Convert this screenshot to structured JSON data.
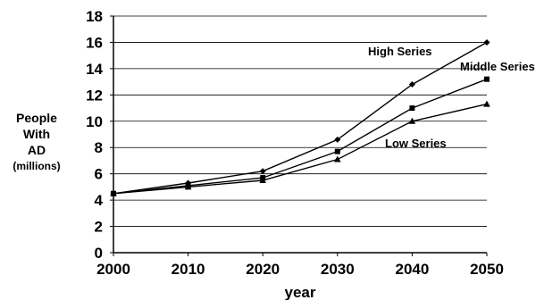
{
  "chart_data": {
    "type": "line",
    "x": [
      2000,
      2010,
      2020,
      2030,
      2040,
      2050
    ],
    "xlabel": "year",
    "ylabel_lines": [
      "People",
      "With",
      "AD",
      "(millions)"
    ],
    "ylim": [
      0,
      18
    ],
    "yticks": [
      0,
      2,
      4,
      6,
      8,
      10,
      12,
      14,
      16,
      18
    ],
    "xticks": [
      2000,
      2010,
      2020,
      2030,
      2040,
      2050
    ],
    "grid": "horizontal",
    "legend": "inline labels",
    "series": [
      {
        "name": "High Series",
        "marker": "diamond",
        "values": [
          4.5,
          5.3,
          6.2,
          8.6,
          12.8,
          16.0
        ]
      },
      {
        "name": "Middle Series",
        "marker": "square",
        "values": [
          4.5,
          5.1,
          5.7,
          7.7,
          11.0,
          13.2
        ]
      },
      {
        "name": "Low Series",
        "marker": "triangle",
        "values": [
          4.5,
          5.0,
          5.5,
          7.1,
          10.0,
          11.3
        ]
      }
    ],
    "line_color": "#000000",
    "grid_color": "#000000"
  }
}
